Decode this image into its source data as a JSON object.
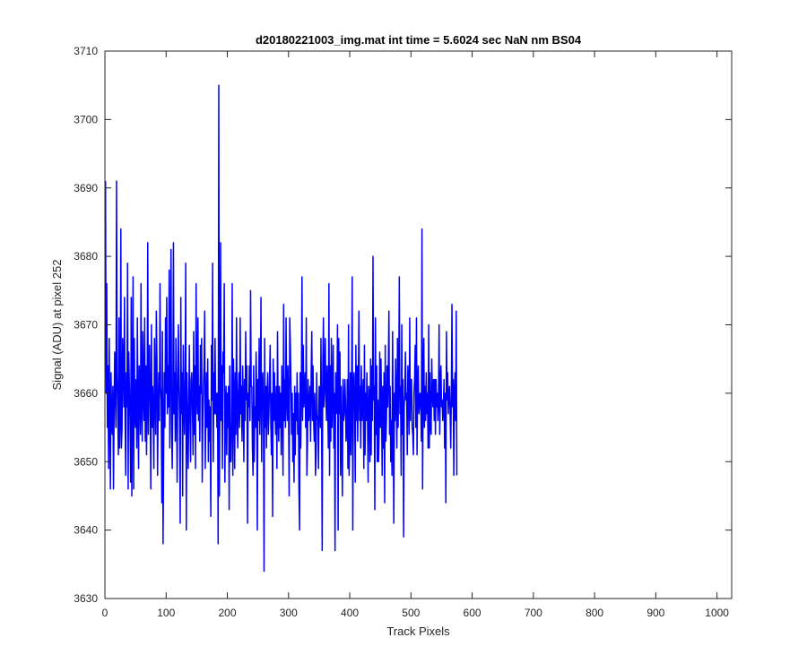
{
  "chart_data": {
    "type": "line",
    "title": "d20180221003_img.mat int time = 5.6024 sec  NaN nm BS04",
    "xlabel": "Track Pixels",
    "ylabel": "Signal (ADU) at pixel 252",
    "xlim": [
      0,
      1024
    ],
    "ylim": [
      3630,
      3710
    ],
    "xticks": [
      0,
      100,
      200,
      300,
      400,
      500,
      600,
      700,
      800,
      900,
      1000
    ],
    "yticks": [
      3630,
      3640,
      3650,
      3660,
      3670,
      3680,
      3690,
      3700,
      3710
    ],
    "grid": false,
    "box": true,
    "line_color": "#0000ff",
    "axis_color": "#262626",
    "series": [
      {
        "x_start": 1,
        "x_step": 1,
        "values": [
          3691,
          3660,
          3676,
          3655,
          3664,
          3649,
          3668,
          3657,
          3646,
          3663,
          3656,
          3654,
          3661,
          3646,
          3657,
          3666,
          3660,
          3655,
          3691,
          3663,
          3657,
          3651,
          3671,
          3652,
          3656,
          3684,
          3652,
          3655,
          3668,
          3664,
          3658,
          3674,
          3656,
          3648,
          3663,
          3658,
          3679,
          3646,
          3666,
          3661,
          3656,
          3647,
          3674,
          3645,
          3660,
          3677,
          3646,
          3668,
          3657,
          3655,
          3662,
          3652,
          3671,
          3658,
          3649,
          3664,
          3661,
          3654,
          3676,
          3658,
          3653,
          3669,
          3660,
          3656,
          3671,
          3653,
          3664,
          3651,
          3659,
          3682,
          3654,
          3662,
          3667,
          3658,
          3646,
          3670,
          3655,
          3661,
          3657,
          3649,
          3668,
          3660,
          3654,
          3672,
          3665,
          3648,
          3658,
          3663,
          3656,
          3676,
          3661,
          3659,
          3644,
          3669,
          3638,
          3652,
          3663,
          3655,
          3671,
          3660,
          3674,
          3657,
          3664,
          3658,
          3678,
          3652,
          3666,
          3681,
          3655,
          3649,
          3660,
          3682,
          3657,
          3663,
          3653,
          3668,
          3659,
          3647,
          3662,
          3670,
          3661,
          3656,
          3641,
          3674,
          3657,
          3663,
          3645,
          3667,
          3659,
          3654,
          3661,
          3679,
          3640,
          3663,
          3657,
          3649,
          3658,
          3667,
          3656,
          3650,
          3662,
          3663,
          3658,
          3651,
          3669,
          3654,
          3664,
          3649,
          3676,
          3660,
          3657,
          3671,
          3656,
          3661,
          3653,
          3667,
          3660,
          3668,
          3647,
          3656,
          3661,
          3664,
          3672,
          3649,
          3657,
          3663,
          3655,
          3665,
          3650,
          3659,
          3653,
          3658,
          3642,
          3667,
          3659,
          3679,
          3650,
          3663,
          3657,
          3668,
          3657,
          3660,
          3655,
          3660,
          3638,
          3705,
          3645,
          3660,
          3682,
          3656,
          3664,
          3649,
          3666,
          3663,
          3676,
          3647,
          3657,
          3661,
          3651,
          3660,
          3655,
          3661,
          3643,
          3664,
          3650,
          3650,
          3656,
          3676,
          3648,
          3665,
          3660,
          3649,
          3663,
          3654,
          3671,
          3657,
          3652,
          3660,
          3663,
          3655,
          3671,
          3657,
          3661,
          3653,
          3664,
          3659,
          3650,
          3662,
          3656,
          3669,
          3659,
          3664,
          3641,
          3660,
          3658,
          3664,
          3656,
          3675,
          3661,
          3661,
          3652,
          3648,
          3664,
          3650,
          3658,
          3655,
          3666,
          3660,
          3640,
          3662,
          3656,
          3668,
          3654,
          3660,
          3674,
          3650,
          3661,
          3663,
          3657,
          3634,
          3668,
          3655,
          3661,
          3652,
          3660,
          3663,
          3654,
          3657,
          3662,
          3667,
          3656,
          3651,
          3660,
          3642,
          3665,
          3656,
          3663,
          3657,
          3654,
          3661,
          3649,
          3669,
          3657,
          3653,
          3661,
          3655,
          3660,
          3651,
          3664,
          3659,
          3648,
          3673,
          3656,
          3662,
          3655,
          3671,
          3659,
          3656,
          3664,
          3658,
          3645,
          3671,
          3667,
          3661,
          3654,
          3660,
          3650,
          3657,
          3647,
          3661,
          3651,
          3660,
          3656,
          3663,
          3654,
          3660,
          3646,
          3640,
          3663,
          3652,
          3661,
          3677,
          3656,
          3667,
          3658,
          3660,
          3663,
          3655,
          3671,
          3648,
          3653,
          3662,
          3656,
          3658,
          3661,
          3653,
          3663,
          3669,
          3656,
          3664,
          3656,
          3653,
          3660,
          3648,
          3651,
          3663,
          3657,
          3656,
          3649,
          3661,
          3660,
          3655,
          3668,
          3656,
          3637,
          3664,
          3671,
          3658,
          3661,
          3668,
          3660,
          3656,
          3664,
          3659,
          3652,
          3676,
          3648,
          3664,
          3653,
          3668,
          3655,
          3660,
          3667,
          3652,
          3660,
          3637,
          3663,
          3657,
          3658,
          3670,
          3640,
          3668,
          3657,
          3666,
          3648,
          3661,
          3653,
          3645,
          3662,
          3656,
          3657,
          3662,
          3659,
          3653,
          3654,
          3662,
          3649,
          3670,
          3648,
          3654,
          3663,
          3651,
          3660,
          3677,
          3640,
          3661,
          3663,
          3659,
          3647,
          3667,
          3656,
          3664,
          3653,
          3661,
          3672,
          3656,
          3661,
          3652,
          3664,
          3656,
          3659,
          3662,
          3649,
          3667,
          3651,
          3660,
          3656,
          3663,
          3657,
          3647,
          3661,
          3660,
          3650,
          3665,
          3651,
          3664,
          3656,
          3680,
          3659,
          3661,
          3643,
          3671,
          3654,
          3664,
          3650,
          3659,
          3650,
          3654,
          3666,
          3655,
          3665,
          3658,
          3648,
          3661,
          3652,
          3663,
          3644,
          3667,
          3653,
          3656,
          3664,
          3658,
          3663,
          3672,
          3654,
          3661,
          3650,
          3656,
          3648,
          3669,
          3655,
          3641,
          3660,
          3656,
          3665,
          3659,
          3652,
          3668,
          3655,
          3662,
          3677,
          3657,
          3661,
          3648,
          3670,
          3654,
          3662,
          3639,
          3658,
          3660,
          3666,
          3659,
          3660,
          3651,
          3664,
          3661,
          3654,
          3671,
          3656,
          3662,
          3662,
          3655,
          3654,
          3651,
          3660,
          3662,
          3667,
          3655,
          3671,
          3651,
          3662,
          3664,
          3657,
          3658,
          3660,
          3659,
          3653,
          3684,
          3646,
          3661,
          3668,
          3655,
          3661,
          3656,
          3663,
          3657,
          3660,
          3652,
          3670,
          3652,
          3663,
          3655,
          3654,
          3665,
          3660,
          3658,
          3662,
          3656,
          3662,
          3654,
          3662,
          3658,
          3660,
          3656,
          3659,
          3670,
          3654,
          3661,
          3664,
          3658,
          3659,
          3656,
          3658,
          3662,
          3652,
          3660,
          3644,
          3669,
          3659,
          3663,
          3657,
          3660,
          3661,
          3657,
          3652,
          3660,
          3673,
          3658,
          3662,
          3648,
          3660,
          3663,
          3656,
          3672,
          3648
        ]
      }
    ]
  }
}
